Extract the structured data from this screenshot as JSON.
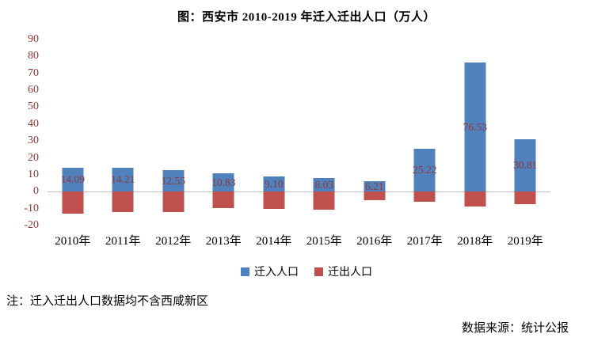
{
  "title": "图：西安市 2010-2019 年迁入迁出人口（万人）",
  "note": "注：迁入迁出人口数据均不含西咸新区",
  "source": "数据来源：统计公报",
  "colors": {
    "in_bar": "#4F81BD",
    "out_bar": "#C0504D",
    "axis_label": "#953735",
    "zero_line": "#BFBFBF"
  },
  "chart_data": {
    "type": "bar",
    "title": "图：西安市 2010-2019 年迁入迁出人口（万人）",
    "categories": [
      "2010年",
      "2011年",
      "2012年",
      "2013年",
      "2014年",
      "2015年",
      "2016年",
      "2017年",
      "2018年",
      "2019年"
    ],
    "series": [
      {
        "name": "迁入人口",
        "values": [
          14.09,
          14.21,
          12.55,
          10.83,
          9.1,
          8.03,
          6.21,
          25.22,
          76.53,
          30.81
        ],
        "data_labels_shown": true
      },
      {
        "name": "迁出人口",
        "values": [
          -13,
          -12,
          -12,
          -9.5,
          -10,
          -10.5,
          -5,
          -6,
          -9,
          -7.5
        ],
        "data_labels_shown": false
      }
    ],
    "ylim": [
      -20,
      90
    ],
    "yticks": [
      90,
      80,
      70,
      60,
      50,
      40,
      30,
      20,
      10,
      0,
      -10,
      -20
    ],
    "xlabel": "",
    "ylabel": "",
    "grid": false,
    "legend_position": "bottom"
  }
}
